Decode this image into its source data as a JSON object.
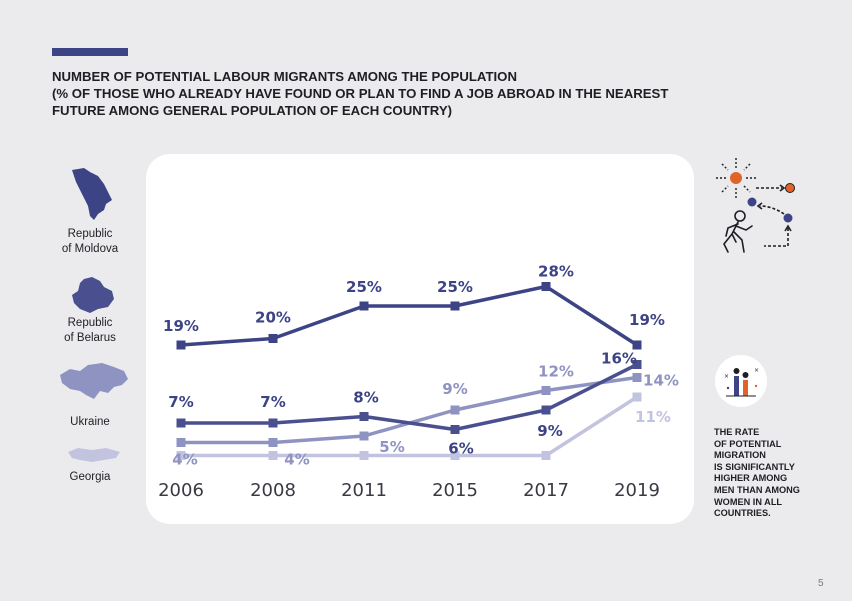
{
  "header": {
    "title_lines": [
      "NUMBER OF POTENTIAL LABOUR MIGRANTS AMONG THE POPULATION",
      "(% OF THOSE WHO ALREADY HAVE FOUND OR PLAN TO FIND A JOB ABROAD IN THE NEAREST",
      "FUTURE AMONG GENERAL POPULATION OF EACH COUNTRY)"
    ]
  },
  "countries": [
    {
      "lines": [
        "Republic",
        "of Moldova"
      ],
      "icon": "moldova-map-icon"
    },
    {
      "lines": [
        "Republic",
        "of Belarus"
      ],
      "icon": "belarus-map-icon"
    },
    {
      "lines": [
        "Ukraine"
      ],
      "icon": "ukraine-map-icon"
    },
    {
      "lines": [
        "Georgia"
      ],
      "icon": "georgia-map-icon"
    }
  ],
  "note": {
    "lines": [
      "THE RATE",
      "OF POTENTIAL",
      "MIGRATION",
      "IS SIGNIFICANTLY",
      "HIGHER AMONG",
      "MEN THAN AMONG",
      "WOMEN IN ALL",
      "COUNTRIES."
    ]
  },
  "page_number": "5",
  "chart_data": {
    "type": "line",
    "categories": [
      "2006",
      "2008",
      "2011",
      "2015",
      "2017",
      "2019"
    ],
    "series": [
      {
        "name": "Republic of Moldova",
        "values": [
          19,
          20,
          25,
          25,
          28,
          19
        ],
        "color": "#3d4485",
        "labels": [
          "19%",
          "20%",
          "25%",
          "25%",
          "28%",
          "19%"
        ],
        "label_color": "#3d4485"
      },
      {
        "name": "Republic of Belarus",
        "values": [
          7,
          7,
          8,
          6,
          9,
          16
        ],
        "color": "#4a4f8f",
        "labels": [
          "7%",
          "7%",
          "8%",
          "6%",
          "9%",
          "16%"
        ],
        "label_color": "#3d4485"
      },
      {
        "name": "Ukraine",
        "values": [
          4,
          4,
          5,
          9,
          12,
          14
        ],
        "color": "#8f93c2",
        "labels": [
          "4%",
          "4%",
          "5%",
          "9%",
          "12%",
          "14%"
        ],
        "label_color": "#8f93c2"
      },
      {
        "name": "Georgia",
        "values": [
          2,
          2,
          2,
          2,
          2,
          11
        ],
        "color": "#c2c4df",
        "labels": [
          "",
          "",
          "",
          "",
          "",
          "11%"
        ],
        "label_color": "#c2c4df"
      }
    ],
    "ylim": [
      0,
      30
    ],
    "grid": false,
    "legend": "left"
  },
  "colors": {
    "accent": "#3d4485",
    "orange": "#e0642a"
  }
}
